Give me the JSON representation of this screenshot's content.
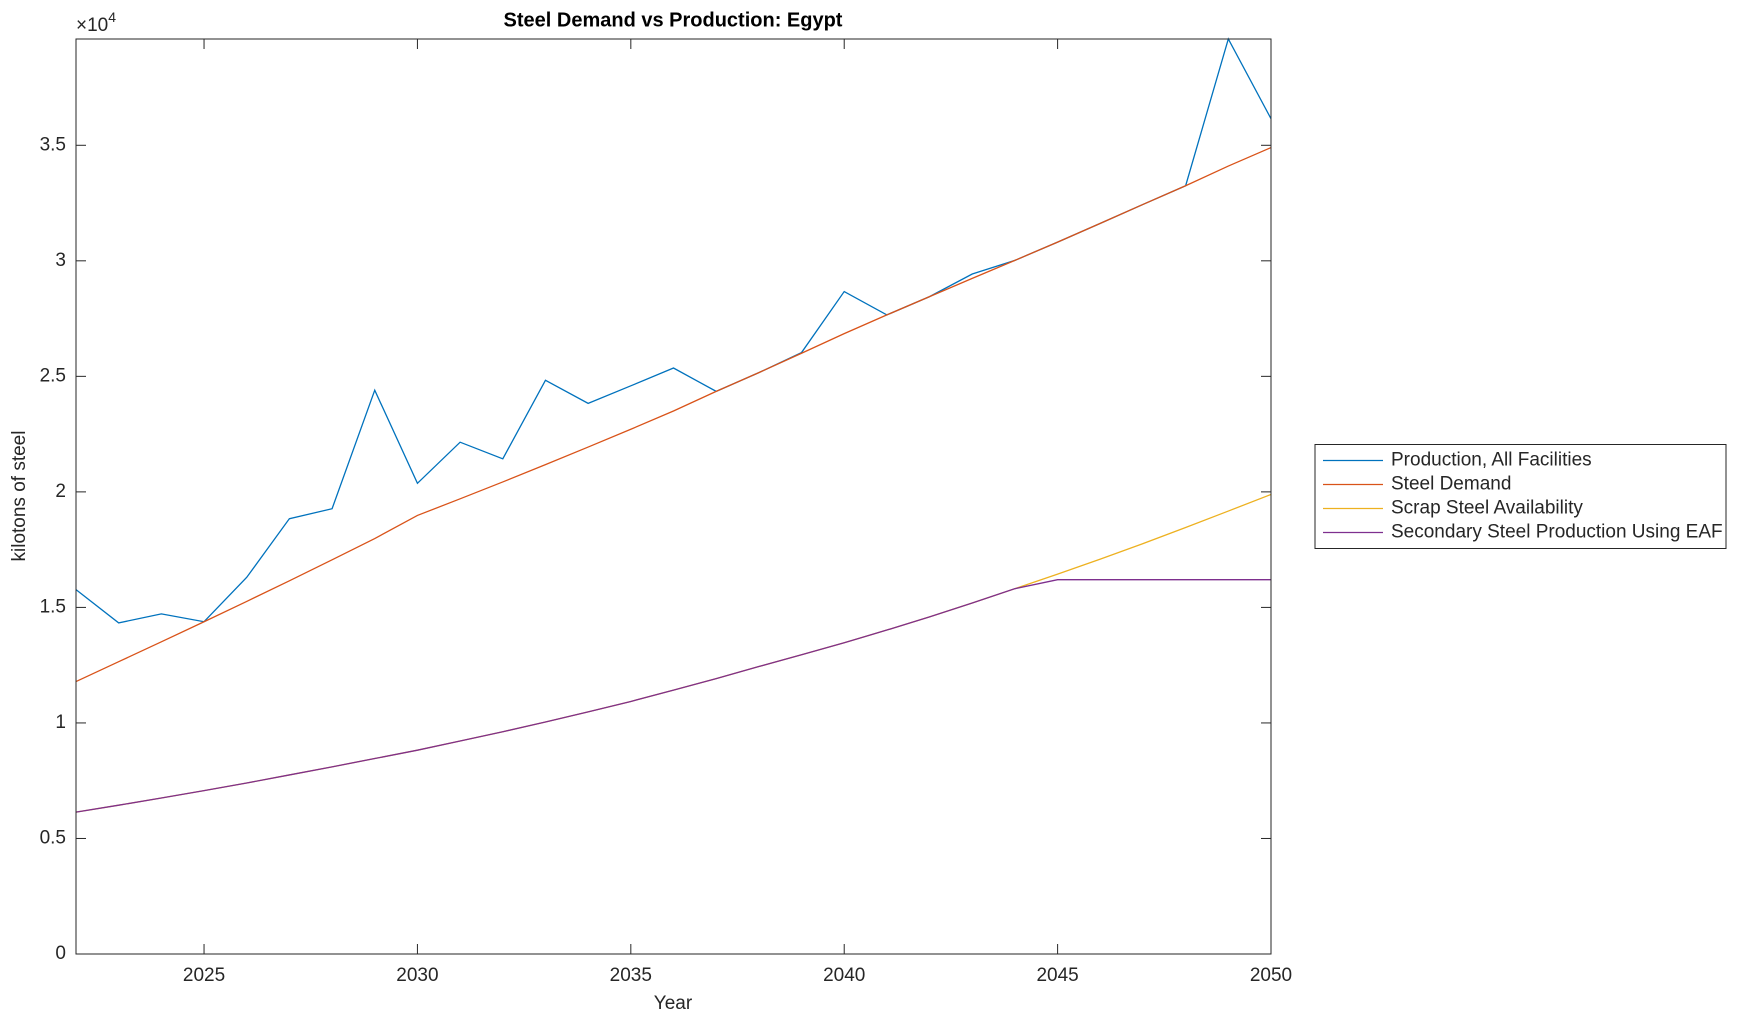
{
  "chart_data": {
    "type": "line",
    "title": "Steel Demand vs Production: Egypt",
    "x_label": "Year",
    "y_label": "kilotons of steel",
    "y_multiplier": {
      "base": "×10",
      "exponent": "4"
    },
    "x": [
      2022,
      2023,
      2024,
      2025,
      2026,
      2027,
      2028,
      2029,
      2030,
      2031,
      2032,
      2033,
      2034,
      2035,
      2036,
      2037,
      2038,
      2039,
      2040,
      2041,
      2042,
      2043,
      2044,
      2045,
      2046,
      2047,
      2048,
      2049,
      2050
    ],
    "series": [
      {
        "name": "Production, All Facilities",
        "color": "#0072BD",
        "values": [
          15770,
          14330,
          14720,
          14380,
          16300,
          18840,
          19270,
          24400,
          20370,
          22150,
          21430,
          24830,
          23830,
          24590,
          25360,
          24350,
          25160,
          26030,
          28670,
          27660,
          28450,
          29430,
          30020,
          30810,
          31620,
          32440,
          33250,
          39600,
          36150
        ]
      },
      {
        "name": "Steel Demand",
        "color": "#D95319",
        "values": [
          11790,
          12650,
          13510,
          14380,
          15260,
          16150,
          17060,
          17980,
          18980,
          19700,
          20430,
          21180,
          21940,
          22710,
          23500,
          24350,
          25160,
          26000,
          26850,
          27660,
          28450,
          29240,
          30020,
          30810,
          31620,
          32440,
          33250,
          34100,
          34900
        ]
      },
      {
        "name": "Scrap Steel Availability",
        "color": "#EDB120",
        "values": [
          6140,
          6440,
          6750,
          7070,
          7400,
          7750,
          8100,
          8460,
          8820,
          9220,
          9620,
          10040,
          10480,
          10930,
          11420,
          11920,
          12440,
          12950,
          13470,
          14020,
          14590,
          15190,
          15810,
          16440,
          17090,
          17760,
          18460,
          19170,
          19890
        ]
      },
      {
        "name": "Secondary Steel Production Using EAF",
        "color": "#7E2F8E",
        "values": [
          6140,
          6440,
          6750,
          7070,
          7400,
          7750,
          8100,
          8460,
          8820,
          9220,
          9620,
          10040,
          10480,
          10930,
          11420,
          11920,
          12440,
          12950,
          13470,
          14020,
          14590,
          15190,
          15810,
          16200,
          16200,
          16200,
          16200,
          16200,
          16200
        ]
      }
    ],
    "xlim": [
      2022,
      2050
    ],
    "xticks": [
      2025,
      2030,
      2035,
      2040,
      2045,
      2050
    ],
    "ylim": [
      0,
      39600
    ],
    "yticks": [
      0,
      {
        "value": 5000,
        "label": "0.5"
      },
      {
        "value": 10000,
        "label": "1"
      },
      {
        "value": 15000,
        "label": "1.5"
      },
      {
        "value": 20000,
        "label": "2"
      },
      {
        "value": 25000,
        "label": "2.5"
      },
      {
        "value": 30000,
        "label": "3"
      },
      {
        "value": 35000,
        "label": "3.5"
      }
    ],
    "grid": false,
    "legend": "east-outside"
  }
}
